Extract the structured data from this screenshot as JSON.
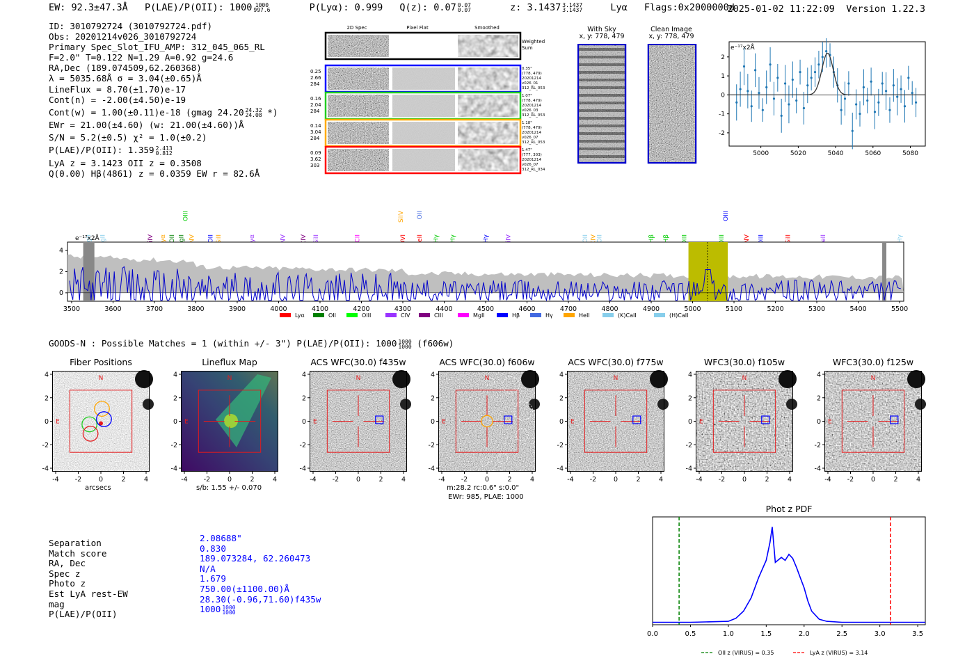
{
  "header": {
    "ew": "EW: 92.3±47.3Å",
    "plae": "P(LAE)/P(OII): 1000",
    "plae_hi": "1000",
    "plae_lo": "997.6",
    "plya": "P(Lyα): 0.999",
    "qz": "Q(z): 0.07",
    "qz_hi": "0.07",
    "qz_lo": "0.07",
    "z": "z: 3.1437",
    "z_hi": "3.1437",
    "z_lo": "3.1437",
    "z_line": "Lyα",
    "flags": "Flags:0x2000000d",
    "timestamp": "2025-01-02 11:22:09",
    "version": "Version 1.22.3"
  },
  "info": {
    "id": "ID: 3010792724 (3010792724.pdf)",
    "obs": "Obs: 20201214v026_3010792724",
    "primary": "Primary Spec_Slot_IFU_AMP: 312_045_065_RL",
    "params": "F=2.0\"  T=0.122  N=1.29  A=0.92  g=24.6",
    "radec": "RA,Dec (189.074509,62.260368)",
    "lambda": "λ = 5035.68Å  σ = 3.04(±0.65)Å",
    "lineflux": "LineFlux = 8.70(±1.70)e-17",
    "contn": "Cont(n) = -2.00(±4.50)e-19",
    "contw": "Cont(w) = 1.00(±0.11)e-18 (gmag 24.20",
    "gmag_hi": "24.32",
    "gmag_lo": "24.08",
    "contw_end": "*)",
    "ewr": "EWr = 21.00(±4.60) (w: 21.00(±4.60))Å",
    "sn": "S/N = 5.2(±0.5)  χ² = 1.0(±0.2)",
    "plae": "P(LAE)/P(OII): 1.359",
    "plae_hi": "2.413",
    "plae_lo": "0.812",
    "lya": "LyA z = 3.1423  OII z = 0.3508",
    "q": "Q(0.00) Hβ(4861) z = 0.0359  EW r = 82.6Å"
  },
  "spec2d": {
    "columns": [
      "2D Spec",
      "Pixel Flat",
      "Smoothed"
    ],
    "weighted": "Weighted Sum",
    "rows": [
      {
        "left": [
          "0.25",
          "2.66",
          "284"
        ],
        "right": [
          "0.35\"",
          "(778, 479)",
          "20201214",
          "v026_01",
          "312_RL_053"
        ],
        "color": "#0000ff"
      },
      {
        "left": [
          "0.16",
          "2.04",
          "284"
        ],
        "right": [
          "1.07\"",
          "(778, 479)",
          "20201214",
          "v026_03",
          "312_RL_053"
        ],
        "color": "#22cc22"
      },
      {
        "left": [
          "0.14",
          "3.04",
          "284"
        ],
        "right": [
          "1.18\"",
          "(778, 479)",
          "20201214",
          "v026_07",
          "312_RL_053"
        ],
        "color": "#ffaa00"
      },
      {
        "left": [
          "0.09",
          "3.62",
          "303"
        ],
        "right": [
          "1.47\"",
          "(777, 303)",
          "20201214",
          "v026_07",
          "312_RL_034"
        ],
        "color": "#ff0000"
      }
    ]
  },
  "sky": {
    "with_sky": "With Sky",
    "with_sky_xy": "x, y: 778, 479",
    "clean": "Clean Image",
    "clean_xy": "x, y: 778, 479"
  },
  "zoom_plot": {
    "unit": "e⁻¹⁷x2Å",
    "xticks": [
      "5000",
      "5020",
      "5040",
      "5060",
      "5080"
    ],
    "yticks": [
      "2",
      "1",
      "0",
      "-1",
      "-2"
    ]
  },
  "spectrum": {
    "unit": "e⁻¹⁷x2Å",
    "xticks": [
      "3500",
      "3600",
      "3700",
      "3800",
      "3900",
      "4000",
      "4100",
      "4200",
      "4300",
      "4400",
      "4500",
      "4600",
      "4700",
      "4800",
      "4900",
      "5000",
      "5100",
      "5200",
      "5300",
      "5400",
      "5500"
    ],
    "yticks": [
      "4",
      "2",
      "0"
    ],
    "legend": [
      {
        "name": "Lyα",
        "color": "#ff0000"
      },
      {
        "name": "OII",
        "color": "#008000"
      },
      {
        "name": "OIII",
        "color": "#00ff00"
      },
      {
        "name": "CIV",
        "color": "#9933ff"
      },
      {
        "name": "CIII",
        "color": "#800080"
      },
      {
        "name": "MgII",
        "color": "#ff00ff"
      },
      {
        "name": "Hβ",
        "color": "#0000ff"
      },
      {
        "name": "Hγ",
        "color": "#4169e1"
      },
      {
        "name": "HeII",
        "color": "#ffa500"
      },
      {
        "name": "(K)CaII",
        "color": "#87ceeb"
      },
      {
        "name": "(H)CaII",
        "color": "#87ceeb"
      }
    ],
    "line_labels": [
      {
        "t": "MgII",
        "c": "#87ceeb"
      },
      {
        "t": "MgII",
        "c": "#87ceeb"
      },
      {
        "t": "SiIV",
        "c": "#800080"
      },
      {
        "t": "Lyα",
        "c": "#ffa500"
      },
      {
        "t": "OII",
        "c": "#008000"
      },
      {
        "t": "MgII",
        "c": "#008000"
      },
      {
        "t": "OIII",
        "c": "#00cc00"
      },
      {
        "t": "NV",
        "c": "#ffa500"
      },
      {
        "t": "OII",
        "c": "#0000ff"
      },
      {
        "t": "SiII",
        "c": "#ffa500"
      },
      {
        "t": "Lyα",
        "c": "#9933ff"
      },
      {
        "t": "NV",
        "c": "#9933ff"
      },
      {
        "t": "CIV",
        "c": "#800080"
      },
      {
        "t": "SiII",
        "c": "#9933ff"
      },
      {
        "t": "CII",
        "c": "#ff00ff"
      },
      {
        "t": "SiIV",
        "c": "#ffa500"
      },
      {
        "t": "OVI",
        "c": "#ff0000"
      },
      {
        "t": "OII",
        "c": "#4169e1"
      },
      {
        "t": "HeII",
        "c": "#ff0000"
      },
      {
        "t": "Hγ",
        "c": "#00cc00"
      },
      {
        "t": "Hγ",
        "c": "#00cc00"
      },
      {
        "t": "Hγ",
        "c": "#0000ff"
      },
      {
        "t": "SiIV",
        "c": "#9933ff"
      },
      {
        "t": "OII",
        "c": "#87ceeb"
      },
      {
        "t": "CIV",
        "c": "#ffa500"
      },
      {
        "t": "OII",
        "c": "#87ceeb"
      },
      {
        "t": "Hβ",
        "c": "#00cc00"
      },
      {
        "t": "Hβ",
        "c": "#00cc00"
      },
      {
        "t": "OIII",
        "c": "#00cc00"
      },
      {
        "t": "OIII",
        "c": "#00cc00"
      },
      {
        "t": "OIII",
        "c": "#0000ff"
      },
      {
        "t": "NV",
        "c": "#ff0000"
      },
      {
        "t": "OIII",
        "c": "#0000ff"
      },
      {
        "t": "SiII",
        "c": "#ff0000"
      },
      {
        "t": "HeII",
        "c": "#9933ff"
      },
      {
        "t": "Hγ",
        "c": "#87ceeb"
      }
    ]
  },
  "goods": {
    "text": "GOODS-N : Possible Matches = 1 (within +/- 3\")  P(LAE)/P(OII): 1000",
    "hi": "1000",
    "lo": "1000",
    "filter": "(f606w)"
  },
  "cutouts": {
    "titles": [
      "Fiber Positions",
      "Lineflux Map",
      "ACS WFC(30.0) f435w",
      "ACS WFC(30.0) f606w",
      "ACS WFC(30.0) f775w",
      "WFC3(30.0) f105w",
      "WFC3(30.0) f125w"
    ],
    "ticks": [
      "4",
      "2",
      "0",
      "-2",
      "-4"
    ],
    "xticks": [
      "-4",
      "-2",
      "0",
      "2",
      "4"
    ],
    "north": "N",
    "east": "E",
    "arcsecs": "arcsecs",
    "sb": "s/b: 1.55 +/- 0.070",
    "f606_line1": "m:28.2 rc:0.6\"  s:0.0\"",
    "f606_line2": "EWr: 985, PLAE: 1000"
  },
  "match": {
    "keys": [
      "Separation",
      "Match score",
      "RA, Dec",
      "Spec z",
      "Photo z",
      "Est LyA rest-EW",
      "mag",
      "P(LAE)/P(OII)"
    ],
    "values": [
      "2.08688\"",
      "0.830",
      "189.073284, 62.260473",
      "N/A",
      "1.679",
      "750.00(±1100.00)Å",
      "28.30(-0.96,71.60)f435w",
      "1000"
    ],
    "plae_hi": "1000",
    "plae_lo": "1000"
  },
  "photz": {
    "title": "Phot z PDF",
    "xticks": [
      "0.0",
      "0.5",
      "1.0",
      "1.5",
      "2.0",
      "2.5",
      "3.0",
      "3.5"
    ],
    "legend_oii": "OII z (VIRUS) = 0.35",
    "legend_lya": "LyA z (VIRUS) = 3.14"
  },
  "chart_data": [
    {
      "type": "scatter",
      "title": "",
      "ylabel": "e-17x2Å",
      "xlim": [
        4983,
        5088
      ],
      "ylim": [
        -2.7,
        2.8
      ],
      "x": [
        4987,
        4989,
        4991,
        4993,
        4995,
        4997,
        4999,
        5001,
        5003,
        5005,
        5007,
        5009,
        5011,
        5013,
        5015,
        5017,
        5019,
        5021,
        5023,
        5025,
        5027,
        5029,
        5031,
        5033,
        5035,
        5037,
        5039,
        5041,
        5043,
        5045,
        5047,
        5049,
        5051,
        5053,
        5055,
        5057,
        5059,
        5061,
        5063,
        5065,
        5067,
        5069,
        5071,
        5073,
        5075,
        5077,
        5079,
        5081,
        5083
      ],
      "y": [
        -0.4,
        0.3,
        1.5,
        0.2,
        -0.6,
        1.3,
        0.1,
        -0.8,
        0.4,
        1.6,
        -0.2,
        0.9,
        -1.1,
        0.6,
        -0.5,
        0.8,
        -0.3,
        1.2,
        -0.7,
        0.5,
        0.9,
        1.2,
        1.6,
        2.0,
        2.3,
        2.1,
        1.2,
        0.5,
        -0.8,
        -0.2,
        0.6,
        -1.9,
        -0.5,
        -1.0,
        0.4,
        -0.3,
        0.7,
        -0.9,
        -0.4,
        0.6,
        0.2,
        -0.8,
        0.5,
        -0.1,
        0.3,
        -0.6,
        0.9,
        0.1,
        -0.4
      ],
      "model_gaussian": {
        "center": 5035.68,
        "sigma": 3.04,
        "amplitude": 2.2
      }
    },
    {
      "type": "line",
      "title": "Phot z PDF",
      "xlim": [
        0,
        3.6
      ],
      "x": [
        0,
        0.5,
        1.0,
        1.1,
        1.2,
        1.3,
        1.4,
        1.5,
        1.55,
        1.58,
        1.62,
        1.7,
        1.75,
        1.8,
        1.85,
        1.9,
        1.95,
        2.0,
        2.05,
        2.1,
        2.2,
        2.3,
        2.5,
        3.0,
        3.6
      ],
      "y": [
        0.01,
        0.01,
        0.02,
        0.05,
        0.12,
        0.25,
        0.45,
        0.62,
        0.8,
        0.95,
        0.6,
        0.65,
        0.62,
        0.68,
        0.64,
        0.55,
        0.45,
        0.35,
        0.22,
        0.12,
        0.04,
        0.02,
        0.01,
        0.01,
        0.01
      ],
      "vlines": [
        {
          "x": 0.35,
          "label": "OII z (VIRUS) = 0.35",
          "color": "#008000"
        },
        {
          "x": 3.14,
          "label": "LyA z (VIRUS) = 3.14",
          "color": "#ff0000"
        }
      ]
    }
  ]
}
